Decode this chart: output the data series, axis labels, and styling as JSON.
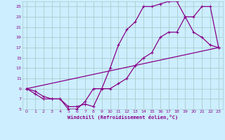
{
  "xlabel": "Windchill (Refroidissement éolien,°C)",
  "background_color": "#cceeff",
  "grid_color": "#aacccc",
  "line_color": "#880088",
  "xlim": [
    -0.5,
    23.5
  ],
  "ylim": [
    5,
    26
  ],
  "xticks": [
    0,
    1,
    2,
    3,
    4,
    5,
    6,
    7,
    8,
    9,
    10,
    11,
    12,
    13,
    14,
    15,
    16,
    17,
    18,
    19,
    20,
    21,
    22,
    23
  ],
  "yticks": [
    5,
    7,
    9,
    11,
    13,
    15,
    17,
    19,
    21,
    23,
    25
  ],
  "line1_x": [
    0,
    1,
    2,
    3,
    4,
    5,
    6,
    7,
    8,
    9,
    10,
    11,
    12,
    13,
    14,
    15,
    16,
    17,
    18,
    19,
    20,
    21,
    22,
    23
  ],
  "line1_y": [
    9,
    8.5,
    7.5,
    7,
    7,
    5.5,
    5.5,
    6,
    5.5,
    9,
    13,
    17.5,
    20.5,
    22,
    25,
    25,
    25.5,
    26,
    26,
    23,
    20,
    19,
    17.5,
    17
  ],
  "line2_x": [
    0,
    1,
    2,
    3,
    4,
    5,
    6,
    7,
    8,
    9,
    10,
    11,
    12,
    13,
    14,
    15,
    16,
    17,
    18,
    19,
    20,
    21,
    22,
    23
  ],
  "line2_y": [
    9,
    8,
    7,
    7,
    7,
    5,
    5,
    6.5,
    9,
    9,
    9,
    10,
    11,
    13.5,
    15,
    16,
    19,
    20,
    20,
    23,
    23,
    25,
    25,
    17
  ],
  "line3_x": [
    0,
    23
  ],
  "line3_y": [
    9,
    17
  ]
}
